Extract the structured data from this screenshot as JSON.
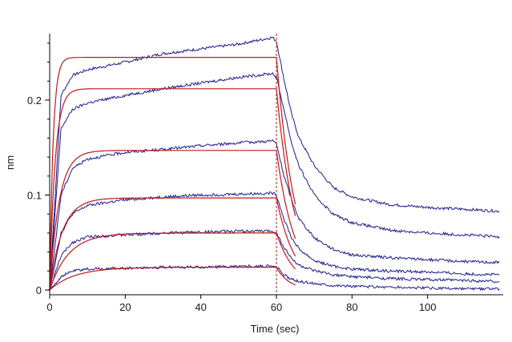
{
  "chart_data": {
    "type": "line",
    "title": "",
    "xlabel": "Time (sec)",
    "ylabel": "nm",
    "xlim": [
      0,
      120
    ],
    "ylim": [
      -0.005,
      0.27
    ],
    "x_ticks": [
      0,
      20,
      40,
      60,
      80,
      100
    ],
    "x_tick_labels": [
      "0",
      "20",
      "40",
      "60",
      "80",
      "100"
    ],
    "y_ticks": [
      0,
      0.1,
      0.2
    ],
    "y_tick_labels": [
      "0",
      "0.1",
      "0.2"
    ],
    "y_minor_tick_step": 0.02,
    "grid": false,
    "legend": "none",
    "dissociation_start": 60,
    "colors": {
      "measured": "#1c1c8c",
      "fitted": "#c01818",
      "marker": "#c01818",
      "axis": "#000000"
    },
    "measured": [
      {
        "x": [
          0,
          3,
          6,
          10,
          20,
          30,
          40,
          50,
          59,
          60,
          62,
          64,
          66,
          70,
          75,
          80,
          90,
          100,
          110,
          119
        ],
        "y": [
          0,
          0.205,
          0.226,
          0.232,
          0.24,
          0.249,
          0.254,
          0.259,
          0.266,
          0.262,
          0.222,
          0.185,
          0.16,
          0.131,
          0.108,
          0.098,
          0.09,
          0.087,
          0.085,
          0.083
        ]
      },
      {
        "x": [
          0,
          3,
          6,
          10,
          20,
          30,
          40,
          50,
          59,
          60,
          62,
          64,
          66,
          70,
          75,
          80,
          90,
          100,
          110,
          119
        ],
        "y": [
          0,
          0.17,
          0.19,
          0.197,
          0.205,
          0.212,
          0.218,
          0.224,
          0.228,
          0.224,
          0.19,
          0.155,
          0.13,
          0.1,
          0.08,
          0.071,
          0.063,
          0.06,
          0.058,
          0.056
        ]
      },
      {
        "x": [
          0,
          3,
          6,
          10,
          20,
          30,
          40,
          50,
          59,
          60,
          62,
          64,
          66,
          70,
          75,
          80,
          90,
          100,
          110,
          119
        ],
        "y": [
          0,
          0.1,
          0.128,
          0.138,
          0.145,
          0.148,
          0.152,
          0.155,
          0.157,
          0.154,
          0.12,
          0.095,
          0.075,
          0.055,
          0.043,
          0.037,
          0.034,
          0.032,
          0.03,
          0.029
        ]
      },
      {
        "x": [
          0,
          3,
          6,
          10,
          20,
          30,
          40,
          50,
          59,
          60,
          62,
          64,
          66,
          70,
          75,
          80,
          90,
          100,
          110,
          119
        ],
        "y": [
          0,
          0.06,
          0.08,
          0.089,
          0.095,
          0.098,
          0.1,
          0.101,
          0.102,
          0.1,
          0.075,
          0.055,
          0.043,
          0.031,
          0.025,
          0.022,
          0.02,
          0.019,
          0.017,
          0.016
        ]
      },
      {
        "x": [
          0,
          3,
          6,
          10,
          20,
          30,
          40,
          50,
          59,
          60,
          62,
          64,
          66,
          70,
          75,
          80,
          90,
          100,
          110,
          119
        ],
        "y": [
          0,
          0.036,
          0.05,
          0.056,
          0.058,
          0.06,
          0.061,
          0.062,
          0.062,
          0.06,
          0.045,
          0.033,
          0.026,
          0.02,
          0.016,
          0.014,
          0.012,
          0.011,
          0.01,
          0.009
        ]
      },
      {
        "x": [
          0,
          3,
          6,
          10,
          20,
          30,
          40,
          50,
          59,
          60,
          62,
          64,
          66,
          70,
          75,
          80,
          90,
          100,
          110,
          119
        ],
        "y": [
          0,
          0.014,
          0.02,
          0.022,
          0.023,
          0.024,
          0.024,
          0.025,
          0.025,
          0.024,
          0.016,
          0.011,
          0.009,
          0.007,
          0.005,
          0.004,
          0.003,
          0.002,
          0.001,
          0.001
        ]
      }
    ],
    "fitted": [
      {
        "plateau": 0.245,
        "k_on": 1.1,
        "k_off": 0.2,
        "end": 65
      },
      {
        "plateau": 0.212,
        "k_on": 0.7,
        "k_off": 0.2,
        "end": 65
      },
      {
        "plateau": 0.147,
        "k_on": 0.4,
        "k_off": 0.2,
        "end": 65
      },
      {
        "plateau": 0.097,
        "k_on": 0.3,
        "k_off": 0.2,
        "end": 65
      },
      {
        "plateau": 0.06,
        "k_on": 0.2,
        "k_off": 0.2,
        "end": 65
      },
      {
        "plateau": 0.024,
        "k_on": 0.15,
        "k_off": 0.3,
        "end": 65
      }
    ]
  }
}
